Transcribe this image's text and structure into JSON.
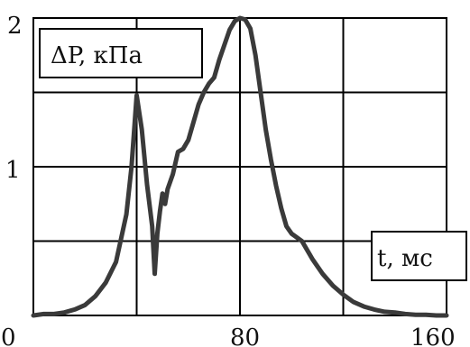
{
  "chart_data": {
    "type": "line",
    "ylabel": "ΔP, кПа",
    "xlabel": "t, мс",
    "x_ticks": [
      "0",
      "80",
      "160"
    ],
    "y_ticks": [
      "1",
      "2"
    ],
    "xlim": [
      0,
      160
    ],
    "ylim": [
      0,
      2
    ],
    "grid": true,
    "colors": {
      "line": "#3a3a3a",
      "grid": "#000000",
      "frame": "#000000"
    },
    "series": [
      {
        "x": [
          0,
          4,
          8,
          12,
          16,
          20,
          24,
          28,
          32,
          36,
          38,
          40,
          42,
          44,
          46,
          47,
          48,
          49,
          50,
          51,
          52,
          54,
          56,
          58,
          60,
          62,
          64,
          66,
          68,
          70,
          72,
          74,
          76,
          78,
          80,
          82,
          84,
          86,
          88,
          90,
          92,
          94,
          96,
          98,
          100,
          104,
          108,
          112,
          116,
          120,
          124,
          128,
          132,
          136,
          140,
          144,
          148,
          152,
          156,
          160
        ],
        "y": [
          0.0,
          0.01,
          0.01,
          0.02,
          0.04,
          0.07,
          0.13,
          0.22,
          0.36,
          0.68,
          1.0,
          1.48,
          1.25,
          0.88,
          0.6,
          0.28,
          0.55,
          0.7,
          0.82,
          0.75,
          0.85,
          0.95,
          1.1,
          1.12,
          1.18,
          1.3,
          1.42,
          1.5,
          1.56,
          1.6,
          1.72,
          1.82,
          1.92,
          1.98,
          2.0,
          1.99,
          1.93,
          1.75,
          1.5,
          1.25,
          1.05,
          0.87,
          0.72,
          0.6,
          0.55,
          0.5,
          0.38,
          0.28,
          0.2,
          0.14,
          0.09,
          0.06,
          0.04,
          0.025,
          0.02,
          0.01,
          0.005,
          0.005,
          0.0,
          0.0
        ]
      }
    ]
  }
}
